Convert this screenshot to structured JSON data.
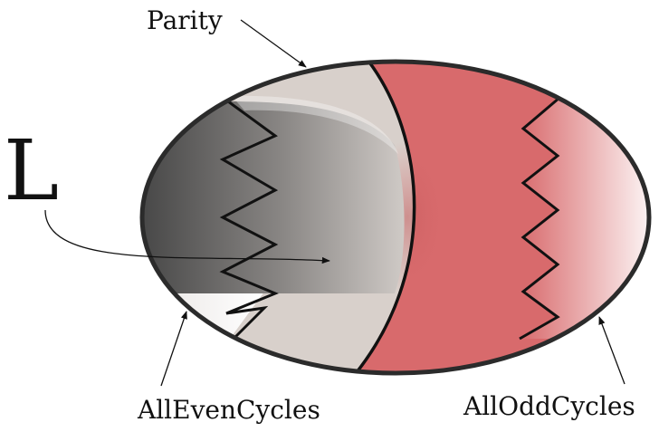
{
  "labels": {
    "parity": "Parity",
    "language": "L",
    "all_even_cycles": "AllEvenCycles",
    "all_odd_cycles": "AllOddCycles"
  },
  "colors": {
    "outline": "#2b2b2b",
    "region_light": "#d8d0cb",
    "region_red": "#d86a6c",
    "gradient_dark": "#4a4a4a",
    "gradient_light": "#c9c4c0"
  }
}
